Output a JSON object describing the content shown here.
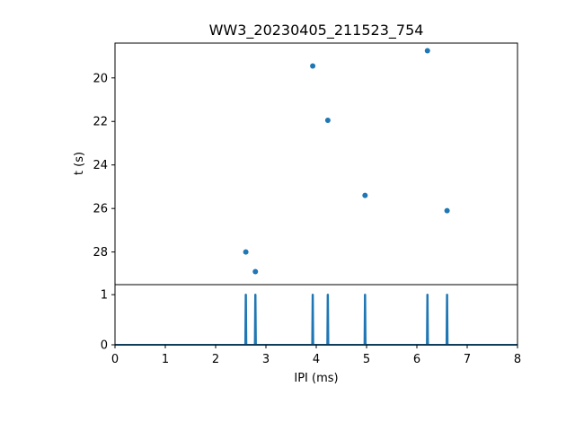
{
  "chart_data": [
    {
      "type": "scatter",
      "title": "WW3_20230405_211523_754",
      "xlabel": "",
      "ylabel": "t (s)",
      "ylim": [
        29.5,
        18.4
      ],
      "y_inverted": true,
      "yticks": [
        20,
        22,
        24,
        26,
        28
      ],
      "color": "#1f77b4",
      "points": [
        {
          "x": 2.6,
          "y": 28.0
        },
        {
          "x": 2.79,
          "y": 28.9
        },
        {
          "x": 3.93,
          "y": 19.45
        },
        {
          "x": 4.23,
          "y": 21.95
        },
        {
          "x": 4.97,
          "y": 25.4
        },
        {
          "x": 6.21,
          "y": 18.75
        },
        {
          "x": 6.6,
          "y": 26.1
        }
      ]
    },
    {
      "type": "line",
      "xlabel": "IPI (ms)",
      "ylabel": "",
      "xlim": [
        0,
        8
      ],
      "ylim": [
        0,
        1.2
      ],
      "xticks": [
        0,
        1,
        2,
        3,
        4,
        5,
        6,
        7,
        8
      ],
      "yticks": [
        0,
        1
      ],
      "color": "#1f77b4",
      "spikes_x": [
        2.6,
        2.79,
        3.93,
        4.23,
        4.97,
        6.21,
        6.6
      ],
      "spike_height": 1
    }
  ]
}
